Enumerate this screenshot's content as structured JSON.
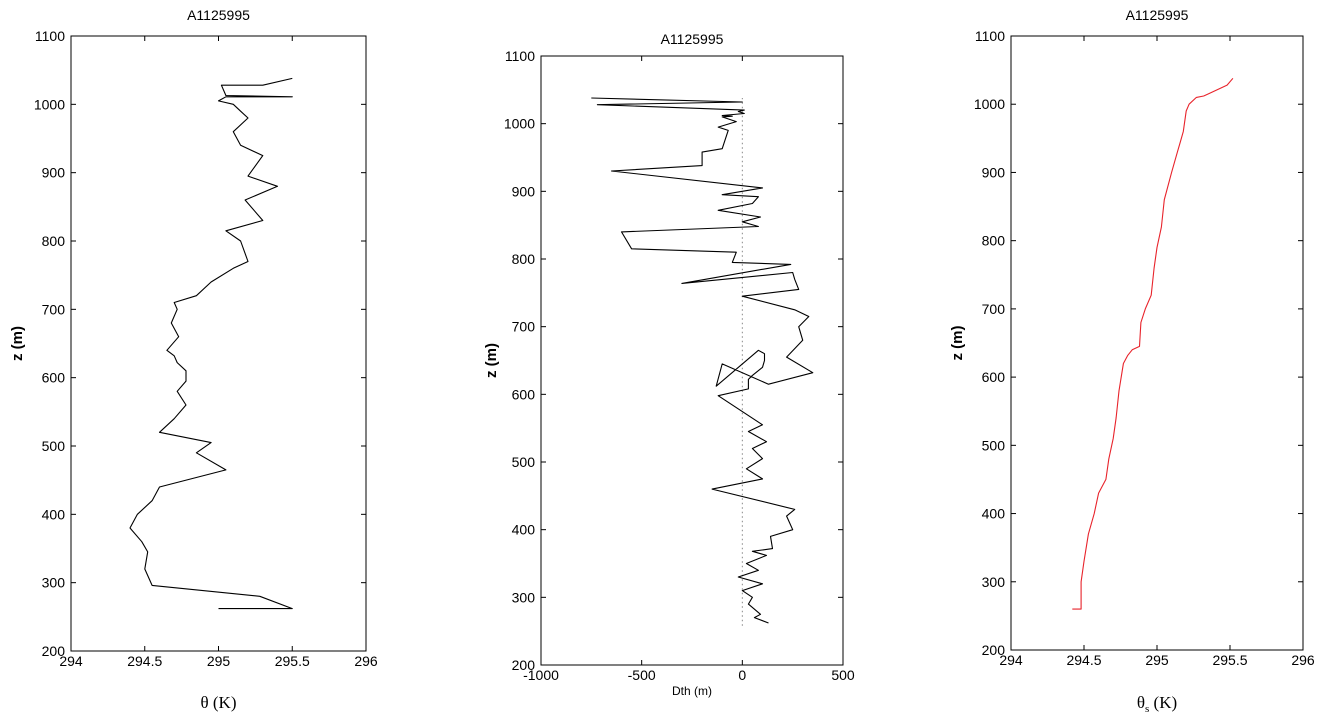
{
  "chart_data": [
    {
      "type": "line",
      "title": "A1125995",
      "xlabel_symbol": "θ",
      "xlabel_unit": " (K)",
      "ylabel": "z (m)",
      "xlim": [
        294,
        296
      ],
      "ylim": [
        200,
        1100
      ],
      "xticks": [
        "294",
        "294.5",
        "295",
        "295.5",
        "296"
      ],
      "yticks": [
        "200",
        "300",
        "400",
        "500",
        "600",
        "700",
        "800",
        "900",
        "1000",
        "1100"
      ],
      "grid": false,
      "series": [
        {
          "color": "#000000",
          "x": [
            295.0,
            295.5,
            295.28,
            294.55,
            294.5,
            294.52,
            294.48,
            294.4,
            294.45,
            294.55,
            294.6,
            295.05,
            294.85,
            294.95,
            294.6,
            294.7,
            294.78,
            294.72,
            294.78,
            294.78,
            294.72,
            294.7,
            294.65,
            294.73,
            294.68,
            294.72,
            294.7,
            294.85,
            294.95,
            295.1,
            295.2,
            295.15,
            295.05,
            295.3,
            295.18,
            295.4,
            295.2,
            295.25,
            295.3,
            295.15,
            295.1,
            295.2,
            295.15,
            295.1,
            295.0,
            295.05,
            295.5,
            295.05,
            295.02,
            295.3,
            295.5
          ],
          "y": [
            262,
            262,
            280,
            296,
            320,
            345,
            360,
            380,
            400,
            420,
            440,
            465,
            490,
            505,
            520,
            540,
            560,
            580,
            595,
            610,
            622,
            632,
            640,
            660,
            680,
            700,
            710,
            720,
            740,
            760,
            770,
            800,
            815,
            830,
            860,
            880,
            895,
            910,
            925,
            940,
            960,
            980,
            990,
            1000,
            1005,
            1011,
            1011,
            1013,
            1028,
            1028,
            1038
          ]
        }
      ]
    },
    {
      "type": "line",
      "title": "A1125995",
      "xlabel": "Dth (m)",
      "ylabel": "z (m)",
      "xlim": [
        -1000,
        500
      ],
      "ylim": [
        200,
        1100
      ],
      "xticks": [
        "-1000",
        "-500",
        "0",
        "500"
      ],
      "yticks": [
        "200",
        "300",
        "400",
        "500",
        "600",
        "700",
        "800",
        "900",
        "1000",
        "1100"
      ],
      "grid": false,
      "reference_line": {
        "x": 0,
        "y_from": 258,
        "y_to": 1038,
        "style": "dotted"
      },
      "series": [
        {
          "color": "#000000",
          "x": [
            130,
            60,
            90,
            30,
            50,
            0,
            100,
            -20,
            80,
            20,
            120,
            50,
            150,
            140,
            250,
            220,
            260,
            -150,
            100,
            20,
            100,
            50,
            120,
            30,
            100,
            -120,
            30,
            30,
            50,
            100,
            110,
            110,
            80,
            -130,
            -100,
            130,
            350,
            220,
            300,
            280,
            330,
            260,
            0,
            280,
            260,
            250,
            -300,
            240,
            -50,
            -30,
            -550,
            -600,
            80,
            0,
            90,
            -120,
            50,
            80,
            -100,
            100,
            -650,
            -200,
            -200,
            -100,
            -70,
            -120,
            -30,
            -100,
            -50,
            -100,
            10,
            -20,
            10,
            -720,
            0,
            -750
          ],
          "y": [
            262,
            270,
            275,
            290,
            300,
            310,
            320,
            330,
            340,
            350,
            362,
            368,
            372,
            390,
            400,
            420,
            430,
            460,
            475,
            490,
            505,
            520,
            530,
            545,
            555,
            598,
            608,
            622,
            628,
            640,
            650,
            660,
            665,
            612,
            645,
            615,
            632,
            655,
            680,
            700,
            715,
            725,
            745,
            755,
            770,
            780,
            764,
            792,
            795,
            810,
            815,
            840,
            848,
            855,
            862,
            872,
            882,
            892,
            895,
            905,
            930,
            938,
            958,
            963,
            990,
            995,
            1003,
            1010,
            1011,
            1012,
            1015,
            1018,
            1020,
            1028,
            1032,
            1038
          ]
        }
      ]
    },
    {
      "type": "line",
      "title": "A1125995",
      "xlabel_symbol": "θ",
      "xlabel_sub": "s",
      "xlabel_unit": " (K)",
      "ylabel": "z (m)",
      "xlim": [
        294,
        296
      ],
      "ylim": [
        200,
        1100
      ],
      "xticks": [
        "294",
        "294.5",
        "295",
        "295.5",
        "296"
      ],
      "yticks": [
        "200",
        "300",
        "400",
        "500",
        "600",
        "700",
        "800",
        "900",
        "1000",
        "1100"
      ],
      "grid": false,
      "series": [
        {
          "color": "#e8232b",
          "x": [
            294.42,
            294.48,
            294.48,
            294.5,
            294.53,
            294.57,
            294.6,
            294.65,
            294.67,
            294.7,
            294.72,
            294.74,
            294.77,
            294.8,
            294.83,
            294.88,
            294.89,
            294.92,
            294.96,
            294.98,
            295.0,
            295.03,
            295.05,
            295.1,
            295.14,
            295.16,
            295.18,
            295.2,
            295.22,
            295.27,
            295.32,
            295.35,
            295.48,
            295.52
          ],
          "y": [
            260,
            260,
            300,
            330,
            370,
            400,
            430,
            450,
            480,
            510,
            540,
            580,
            620,
            632,
            640,
            645,
            680,
            700,
            720,
            760,
            790,
            820,
            860,
            900,
            930,
            945,
            960,
            990,
            1000,
            1010,
            1012,
            1015,
            1028,
            1038
          ]
        }
      ]
    }
  ]
}
